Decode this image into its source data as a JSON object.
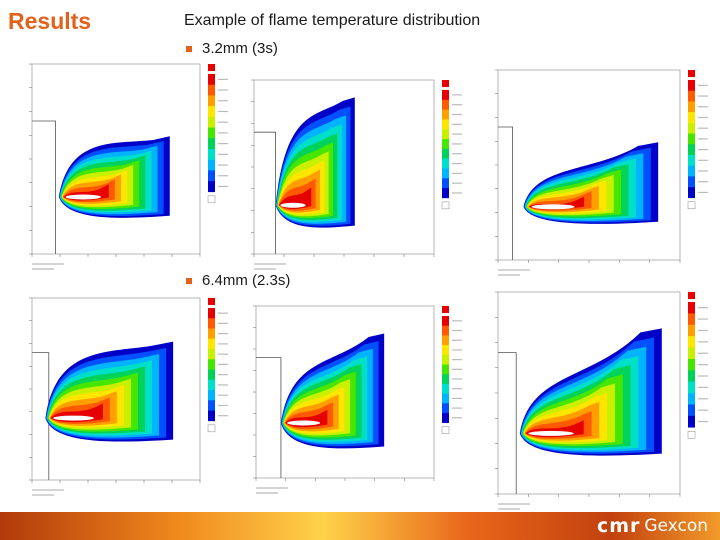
{
  "slide": {
    "title": "Results",
    "subtitle": "Example of flame temperature distribution",
    "bullets": [
      "3.2mm (3s)",
      "6.4mm (2.3s)"
    ]
  },
  "colors": {
    "accent": "#e2611b",
    "palette": [
      "#0000c8",
      "#0050ff",
      "#00b4ff",
      "#00e0c8",
      "#00d25a",
      "#46e600",
      "#c8f000",
      "#ffe600",
      "#ffa000",
      "#ff5a00",
      "#e60000"
    ]
  },
  "footer": {
    "logo_main": "cmr",
    "logo_sub": "Gexcon"
  }
}
